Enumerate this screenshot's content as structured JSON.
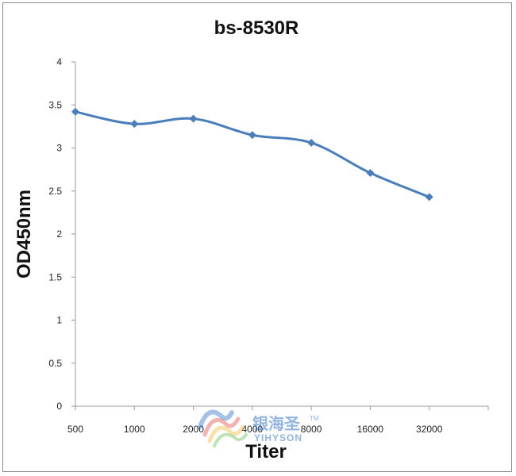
{
  "chart_data": {
    "type": "line",
    "title": "bs-8530R",
    "xlabel": "Titer",
    "ylabel": "OD450nm",
    "categories": [
      "500",
      "1000",
      "2000",
      "4000",
      "8000",
      "16000",
      "32000"
    ],
    "series": [
      {
        "name": "",
        "values": [
          3.42,
          3.28,
          3.34,
          3.15,
          3.06,
          2.71,
          2.43
        ],
        "color": "#4a7ebb"
      }
    ],
    "ylim": [
      0,
      4
    ],
    "yticks": [
      "0",
      "0.5",
      "1",
      "1.5",
      "2",
      "2.5",
      "3",
      "3.5",
      "4"
    ],
    "grid": false,
    "legend": "none"
  },
  "watermark": {
    "text_cn": "银海圣",
    "text_en": "YIHYSON",
    "trademark": "TM",
    "colors": [
      "#3a78c8",
      "#e23b3b",
      "#f2b233",
      "#57b947"
    ]
  }
}
